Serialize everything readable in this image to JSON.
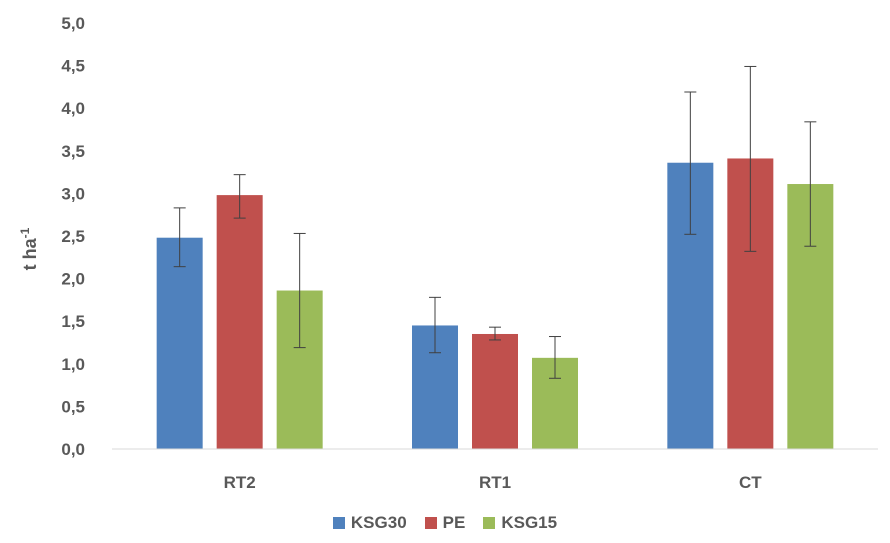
{
  "chart_data": {
    "type": "bar",
    "categories": [
      "RT2",
      "RT1",
      "CT"
    ],
    "series": [
      {
        "name": "KSG30",
        "color": "#4F81BD",
        "values": [
          2.48,
          1.45,
          3.36
        ],
        "error": [
          [
            2.14,
            2.83
          ],
          [
            1.13,
            1.78
          ],
          [
            2.52,
            4.19
          ]
        ]
      },
      {
        "name": "PE",
        "color": "#C0504D",
        "values": [
          2.98,
          1.35,
          3.41
        ],
        "error": [
          [
            2.71,
            3.22
          ],
          [
            1.28,
            1.43
          ],
          [
            2.32,
            4.49
          ]
        ]
      },
      {
        "name": "KSG15",
        "color": "#9BBB59",
        "values": [
          1.86,
          1.07,
          3.11
        ],
        "error": [
          [
            1.19,
            2.53
          ],
          [
            0.83,
            1.32
          ],
          [
            2.38,
            3.84
          ]
        ]
      }
    ],
    "ylabel_base": "t ha",
    "ylabel_sup": "-1",
    "ylim": [
      0,
      5
    ],
    "yticks": [
      "0,0",
      "0,5",
      "1,0",
      "1,5",
      "2,0",
      "2,5",
      "3,0",
      "3,5",
      "4,0",
      "4,5",
      "5,0"
    ],
    "grid": false,
    "legend_position": "bottom"
  }
}
